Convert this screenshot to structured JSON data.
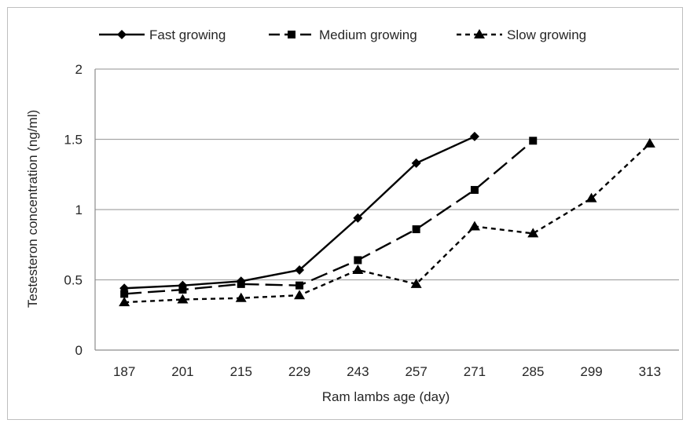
{
  "chart_data": {
    "type": "line",
    "title": "",
    "xlabel": "Ram lambs age (day)",
    "ylabel": "Testesteron concentration (ng/ml)",
    "categories": [
      "187",
      "201",
      "215",
      "229",
      "243",
      "257",
      "271",
      "285",
      "299",
      "313"
    ],
    "ylim": [
      0,
      2
    ],
    "yticks": [
      "0",
      "0.5",
      "1",
      "1.5",
      "2"
    ],
    "grid": "horizontal",
    "legend_position": "top",
    "series": [
      {
        "name": "Fast growing",
        "values": [
          0.44,
          0.46,
          0.49,
          0.57,
          0.94,
          1.33,
          1.52,
          null,
          null,
          null
        ],
        "marker": "diamond",
        "dash": "solid",
        "color": "#000000"
      },
      {
        "name": "Medium growing",
        "values": [
          0.4,
          0.43,
          0.47,
          0.46,
          0.64,
          0.86,
          1.14,
          1.49,
          null,
          null
        ],
        "marker": "square",
        "dash": "longdash",
        "color": "#000000"
      },
      {
        "name": "Slow growing",
        "values": [
          0.34,
          0.36,
          0.37,
          0.39,
          0.57,
          0.47,
          0.88,
          0.83,
          1.08,
          1.47
        ],
        "marker": "triangle",
        "dash": "shortdash",
        "color": "#000000"
      }
    ]
  }
}
